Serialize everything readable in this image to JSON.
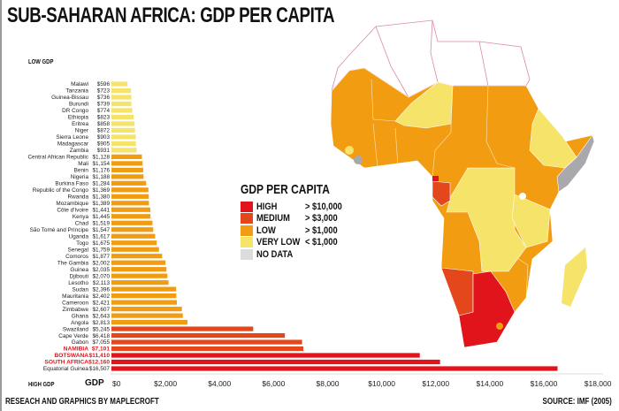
{
  "header": {
    "title": "SUB-SAHARAN AFRICA: GDP PER CAPITA",
    "low_label": "LOW GDP",
    "high_label": "HIGH GDP",
    "axis_label": "GDP"
  },
  "legend": {
    "title": "GDP PER CAPITA",
    "items": [
      {
        "label": "HIGH",
        "range": "> $10,000",
        "color": "#e1141b"
      },
      {
        "label": "MEDIUM",
        "range": "> $3,000",
        "color": "#e5471c"
      },
      {
        "label": "LOW",
        "range": "> $1,000",
        "color": "#f29c12"
      },
      {
        "label": "VERY LOW",
        "range": "< $1,000",
        "color": "#f5e36a"
      },
      {
        "label": "NO DATA",
        "range": "",
        "color": "#dcdcdc"
      }
    ]
  },
  "footer": {
    "credit": "RESEACH AND GRAPHICS BY MAPLECROFT",
    "source": "SOURCE: IMF (2005)"
  },
  "chart_data": {
    "type": "bar",
    "orientation": "horizontal",
    "title": "SUB-SAHARAN AFRICA: GDP PER CAPITA",
    "xlabel": "GDP",
    "xlim": [
      0,
      18000
    ],
    "ticks": [
      "$0",
      "$2,000",
      "$4,000",
      "$6,000",
      "$8,000",
      "$10,000",
      "$12,000",
      "$14,000",
      "$16,000",
      "$18,000"
    ],
    "tick_values": [
      0,
      2000,
      4000,
      6000,
      8000,
      10000,
      12000,
      14000,
      16000,
      18000
    ],
    "categories": [
      "Malawi",
      "Tanzania",
      "Guinea-Bissau",
      "Burundi",
      "DR Congo",
      "Ethiopia",
      "Eritrea",
      "Niger",
      "Sierra Leone",
      "Madagascar",
      "Zambia",
      "Central African Republic",
      "Mali",
      "Benin",
      "Nigeria",
      "Burkina Faso",
      "Republic of the Congo",
      "Rwanda",
      "Mozambique",
      "Côte d'Ivoire",
      "Kenya",
      "Chad",
      "São Tomé and Príncipe",
      "Uganda",
      "Togo",
      "Senegal",
      "Comoros",
      "The Gambia",
      "Guinea",
      "Djibouti",
      "Lesotho",
      "Sudan",
      "Mauritania",
      "Cameroon",
      "Zimbabwe",
      "Ghana",
      "Angola",
      "Swaziland",
      "Cape Verde",
      "Gabon",
      "NAMIBIA",
      "BOTSWANA",
      "SOUTH AFRICA",
      "Equatorial Guinea"
    ],
    "values": [
      596,
      723,
      736,
      739,
      774,
      823,
      858,
      872,
      903,
      905,
      931,
      1128,
      1154,
      1176,
      1188,
      1284,
      1369,
      1380,
      1389,
      1441,
      1445,
      1519,
      1547,
      1617,
      1675,
      1759,
      1877,
      2002,
      2035,
      2070,
      2113,
      2396,
      2402,
      2421,
      2607,
      2643,
      2813,
      5245,
      6418,
      7055,
      7101,
      11410,
      12160,
      16507
    ],
    "value_labels": [
      "$596",
      "$723",
      "$736",
      "$739",
      "$774",
      "$823",
      "$858",
      "$872",
      "$903",
      "$905",
      "$931",
      "$1,128",
      "$1,154",
      "$1,176",
      "$1,188",
      "$1,284",
      "$1,369",
      "$1,380",
      "$1,389",
      "$1,441",
      "$1,445",
      "$1,519",
      "$1,547",
      "$1,617",
      "$1,675",
      "$1,759",
      "$1,877",
      "$2,002",
      "$2,035",
      "$2,070",
      "$2,113",
      "$2,396",
      "$2,402",
      "$2,421",
      "$2,607",
      "$2,643",
      "$2,813",
      "$5,245",
      "$6,418",
      "$7,055",
      "$7,101",
      "$11,410",
      "$12,160",
      "$16,507"
    ],
    "highlighted": [
      "NAMIBIA",
      "BOTSWANA",
      "SOUTH AFRICA"
    ]
  }
}
